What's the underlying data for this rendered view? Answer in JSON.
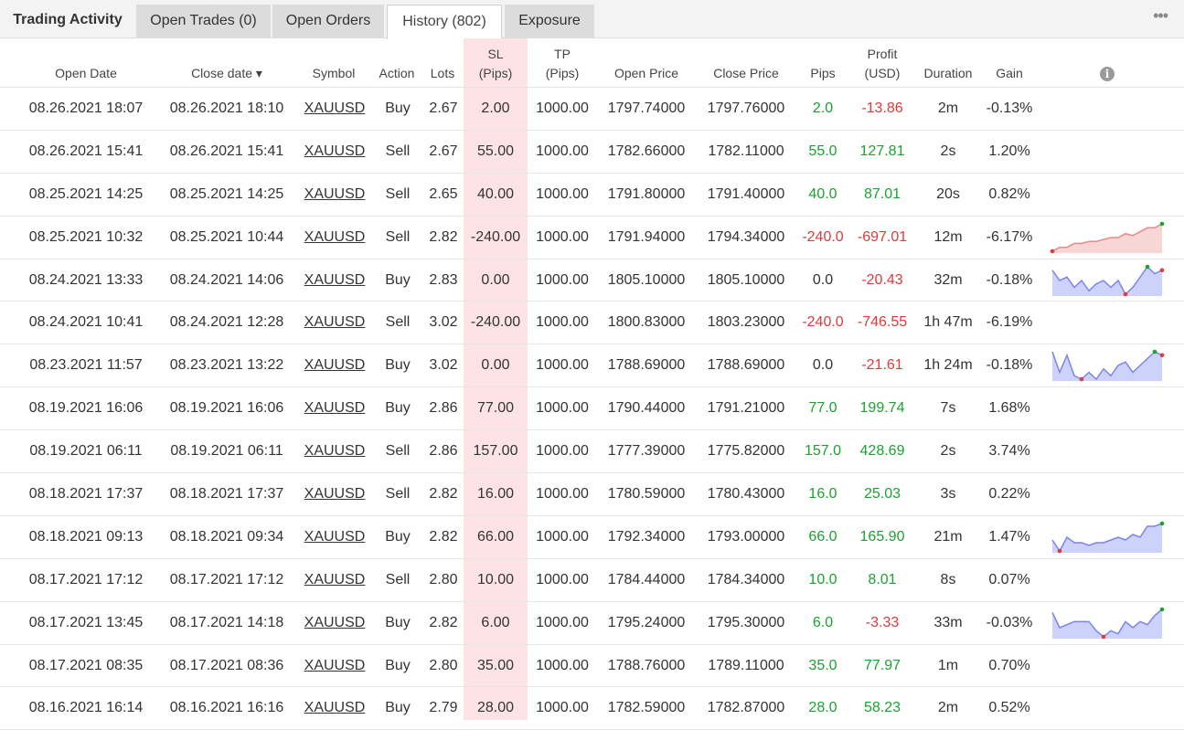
{
  "tabs": {
    "title": "Trading Activity",
    "open_trades": "Open Trades (0)",
    "open_orders": "Open Orders",
    "history": "History (802)",
    "exposure": "Exposure",
    "more": "•••"
  },
  "headers": {
    "open_date": "Open Date",
    "close_date": "Close date ▾",
    "symbol": "Symbol",
    "action": "Action",
    "lots": "Lots",
    "sl_1": "SL",
    "sl_2": "(Pips)",
    "tp_1": "TP",
    "tp_2": "(Pips)",
    "open_price": "Open Price",
    "close_price": "Close Price",
    "pips": "Pips",
    "profit_1": "Profit",
    "profit_2": "(USD)",
    "duration": "Duration",
    "gain": "Gain",
    "info": "i"
  },
  "colors": {
    "positive": "#1aa330",
    "negative": "#e03a3a",
    "sl_highlight": "#fde3e3",
    "spark_blue": "#7a84f0",
    "spark_red": "#e88a8a"
  },
  "rows": [
    {
      "open": "08.26.2021 18:07",
      "close": "08.26.2021 18:10",
      "symbol": "XAUUSD",
      "action": "Buy",
      "lots": "2.67",
      "sl": "2.00",
      "tp": "1000.00",
      "open_price": "1797.74000",
      "close_price": "1797.76000",
      "pips": "2.0",
      "profit": "-13.86",
      "duration": "2m",
      "gain": "-0.13%",
      "pips_sign": "pos",
      "profit_sign": "neg",
      "spark": null
    },
    {
      "open": "08.26.2021 15:41",
      "close": "08.26.2021 15:41",
      "symbol": "XAUUSD",
      "action": "Sell",
      "lots": "2.67",
      "sl": "55.00",
      "tp": "1000.00",
      "open_price": "1782.66000",
      "close_price": "1782.11000",
      "pips": "55.0",
      "profit": "127.81",
      "duration": "2s",
      "gain": "1.20%",
      "pips_sign": "pos",
      "profit_sign": "pos",
      "spark": null
    },
    {
      "open": "08.25.2021 14:25",
      "close": "08.25.2021 14:25",
      "symbol": "XAUUSD",
      "action": "Sell",
      "lots": "2.65",
      "sl": "40.00",
      "tp": "1000.00",
      "open_price": "1791.80000",
      "close_price": "1791.40000",
      "pips": "40.0",
      "profit": "87.01",
      "duration": "20s",
      "gain": "0.82%",
      "pips_sign": "pos",
      "profit_sign": "pos",
      "spark": null
    },
    {
      "open": "08.25.2021 10:32",
      "close": "08.25.2021 10:44",
      "symbol": "XAUUSD",
      "action": "Sell",
      "lots": "2.82",
      "sl": "-240.00",
      "tp": "1000.00",
      "open_price": "1791.94000",
      "close_price": "1794.34000",
      "pips": "-240.0",
      "profit": "-697.01",
      "duration": "12m",
      "gain": "-6.17%",
      "pips_sign": "neg",
      "profit_sign": "neg",
      "spark": {
        "color": "red",
        "values": [
          0,
          2,
          2,
          4,
          4,
          5,
          5,
          6,
          7,
          7,
          9,
          8,
          10,
          12,
          12,
          14
        ]
      }
    },
    {
      "open": "08.24.2021 13:33",
      "close": "08.24.2021 14:06",
      "symbol": "XAUUSD",
      "action": "Buy",
      "lots": "2.83",
      "sl": "0.00",
      "tp": "1000.00",
      "open_price": "1805.10000",
      "close_price": "1805.10000",
      "pips": "0.0",
      "profit": "-20.43",
      "duration": "32m",
      "gain": "-0.18%",
      "pips_sign": "none",
      "profit_sign": "neg",
      "spark": {
        "color": "blue",
        "values": [
          8,
          5,
          6,
          3,
          5,
          2,
          4,
          5,
          3,
          5,
          1,
          3,
          6,
          9,
          7,
          8
        ]
      }
    },
    {
      "open": "08.24.2021 10:41",
      "close": "08.24.2021 12:28",
      "symbol": "XAUUSD",
      "action": "Sell",
      "lots": "3.02",
      "sl": "-240.00",
      "tp": "1000.00",
      "open_price": "1800.83000",
      "close_price": "1803.23000",
      "pips": "-240.0",
      "profit": "-746.55",
      "duration": "1h 47m",
      "gain": "-6.19%",
      "pips_sign": "neg",
      "profit_sign": "neg",
      "spark": null
    },
    {
      "open": "08.23.2021 11:57",
      "close": "08.23.2021 13:22",
      "symbol": "XAUUSD",
      "action": "Buy",
      "lots": "3.02",
      "sl": "0.00",
      "tp": "1000.00",
      "open_price": "1788.69000",
      "close_price": "1788.69000",
      "pips": "0.0",
      "profit": "-21.61",
      "duration": "1h 24m",
      "gain": "-0.18%",
      "pips_sign": "none",
      "profit_sign": "neg",
      "spark": {
        "color": "blue",
        "values": [
          9,
          3,
          8,
          2,
          1,
          3,
          1,
          4,
          2,
          5,
          6,
          3,
          5,
          7,
          9,
          8
        ]
      }
    },
    {
      "open": "08.19.2021 16:06",
      "close": "08.19.2021 16:06",
      "symbol": "XAUUSD",
      "action": "Buy",
      "lots": "2.86",
      "sl": "77.00",
      "tp": "1000.00",
      "open_price": "1790.44000",
      "close_price": "1791.21000",
      "pips": "77.0",
      "profit": "199.74",
      "duration": "7s",
      "gain": "1.68%",
      "pips_sign": "pos",
      "profit_sign": "pos",
      "spark": null
    },
    {
      "open": "08.19.2021 06:11",
      "close": "08.19.2021 06:11",
      "symbol": "XAUUSD",
      "action": "Sell",
      "lots": "2.86",
      "sl": "157.00",
      "tp": "1000.00",
      "open_price": "1777.39000",
      "close_price": "1775.82000",
      "pips": "157.0",
      "profit": "428.69",
      "duration": "2s",
      "gain": "3.74%",
      "pips_sign": "pos",
      "profit_sign": "pos",
      "spark": null
    },
    {
      "open": "08.18.2021 17:37",
      "close": "08.18.2021 17:37",
      "symbol": "XAUUSD",
      "action": "Sell",
      "lots": "2.82",
      "sl": "16.00",
      "tp": "1000.00",
      "open_price": "1780.59000",
      "close_price": "1780.43000",
      "pips": "16.0",
      "profit": "25.03",
      "duration": "3s",
      "gain": "0.22%",
      "pips_sign": "pos",
      "profit_sign": "pos",
      "spark": null
    },
    {
      "open": "08.18.2021 09:13",
      "close": "08.18.2021 09:34",
      "symbol": "XAUUSD",
      "action": "Buy",
      "lots": "2.82",
      "sl": "66.00",
      "tp": "1000.00",
      "open_price": "1792.34000",
      "close_price": "1793.00000",
      "pips": "66.0",
      "profit": "165.90",
      "duration": "21m",
      "gain": "1.47%",
      "pips_sign": "pos",
      "profit_sign": "pos",
      "spark": {
        "color": "blue",
        "values": [
          4,
          0,
          5,
          3,
          3,
          2,
          3,
          3,
          4,
          5,
          4,
          6,
          5,
          9,
          9,
          10
        ]
      }
    },
    {
      "open": "08.17.2021 17:12",
      "close": "08.17.2021 17:12",
      "symbol": "XAUUSD",
      "action": "Sell",
      "lots": "2.80",
      "sl": "10.00",
      "tp": "1000.00",
      "open_price": "1784.44000",
      "close_price": "1784.34000",
      "pips": "10.0",
      "profit": "8.01",
      "duration": "8s",
      "gain": "0.07%",
      "pips_sign": "pos",
      "profit_sign": "pos",
      "spark": null
    },
    {
      "open": "08.17.2021 13:45",
      "close": "08.17.2021 14:18",
      "symbol": "XAUUSD",
      "action": "Buy",
      "lots": "2.82",
      "sl": "6.00",
      "tp": "1000.00",
      "open_price": "1795.24000",
      "close_price": "1795.30000",
      "pips": "6.0",
      "profit": "-3.33",
      "duration": "33m",
      "gain": "-0.03%",
      "pips_sign": "pos",
      "profit_sign": "neg",
      "spark": {
        "color": "blue",
        "values": [
          8,
          3,
          4,
          5,
          5,
          5,
          2,
          0,
          2,
          1,
          5,
          3,
          5,
          4,
          7,
          9
        ]
      }
    },
    {
      "open": "08.17.2021 08:35",
      "close": "08.17.2021 08:36",
      "symbol": "XAUUSD",
      "action": "Buy",
      "lots": "2.80",
      "sl": "35.00",
      "tp": "1000.00",
      "open_price": "1788.76000",
      "close_price": "1789.11000",
      "pips": "35.0",
      "profit": "77.97",
      "duration": "1m",
      "gain": "0.70%",
      "pips_sign": "pos",
      "profit_sign": "pos",
      "spark": null
    },
    {
      "open": "08.16.2021 16:14",
      "close": "08.16.2021 16:16",
      "symbol": "XAUUSD",
      "action": "Buy",
      "lots": "2.79",
      "sl": "28.00",
      "tp": "1000.00",
      "open_price": "1782.59000",
      "close_price": "1782.87000",
      "pips": "28.0",
      "profit": "58.23",
      "duration": "2m",
      "gain": "0.52%",
      "pips_sign": "pos",
      "profit_sign": "pos",
      "spark": null
    }
  ]
}
